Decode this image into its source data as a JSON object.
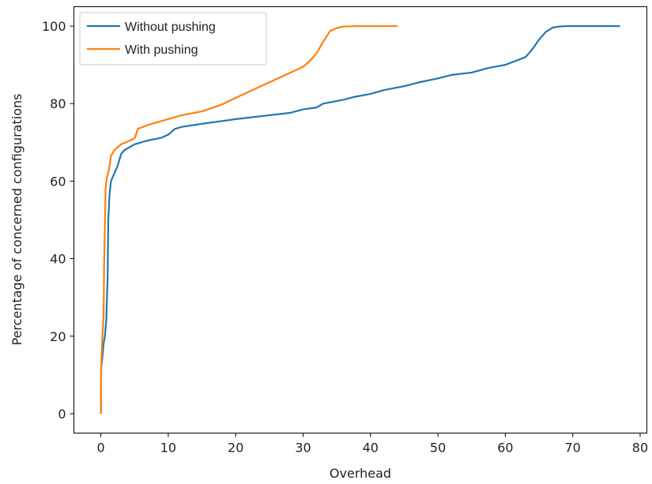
{
  "chart_data": {
    "type": "line",
    "title": "",
    "xlabel": "Overhead",
    "ylabel": "Percentage of concerned configurations",
    "xlim": [
      -4,
      81
    ],
    "ylim": [
      -5,
      105
    ],
    "xticks": [
      0,
      10,
      20,
      30,
      40,
      50,
      60,
      70,
      80
    ],
    "yticks": [
      0,
      20,
      40,
      60,
      80,
      100
    ],
    "grid": false,
    "legend_position": "top-left",
    "series": [
      {
        "name": "Without pushing",
        "color": "#1f77b4",
        "x": [
          0,
          0.05,
          0.2,
          0.4,
          0.6,
          0.8,
          1.0,
          1.1,
          1.3,
          1.5,
          2.0,
          2.5,
          3.0,
          3.5,
          5.0,
          7.0,
          9.0,
          10.0,
          11.0,
          12.0,
          15.0,
          18.0,
          20.0,
          25.0,
          28.0,
          30.0,
          32.0,
          33.0,
          36.0,
          37.5,
          40.0,
          42.0,
          45.0,
          47.5,
          50.0,
          52.0,
          55.0,
          57.5,
          60.0,
          63.0,
          64.0,
          65.0,
          66.0,
          67.0,
          68.0,
          69.0,
          70.0,
          74.0,
          77.0
        ],
        "y": [
          0,
          12,
          14,
          18,
          20,
          24,
          35,
          50,
          57,
          60,
          62,
          64,
          67,
          68,
          69.5,
          70.5,
          71.2,
          72.0,
          73.5,
          74.0,
          74.8,
          75.5,
          76.0,
          77.0,
          77.6,
          78.5,
          79.0,
          80.0,
          81.0,
          81.7,
          82.5,
          83.5,
          84.5,
          85.6,
          86.5,
          87.4,
          88.0,
          89.2,
          90.0,
          92.0,
          94.0,
          96.5,
          98.5,
          99.6,
          99.9,
          100,
          100,
          100,
          100
        ]
      },
      {
        "name": "With pushing",
        "color": "#ff7f0e",
        "x": [
          0,
          0.05,
          0.2,
          0.4,
          0.5,
          0.7,
          0.9,
          1.2,
          1.5,
          2.0,
          3.0,
          5.0,
          5.5,
          7.0,
          10.0,
          12.0,
          15.0,
          18.0,
          20.0,
          22.5,
          25.0,
          27.5,
          30.0,
          31.0,
          32.0,
          33.0,
          34.0,
          35.0,
          36.0,
          38.0,
          40.0,
          43.0,
          44.0
        ],
        "y": [
          0,
          12,
          19,
          25,
          40,
          58,
          61,
          63,
          66.5,
          68,
          69.5,
          71,
          73.5,
          74.5,
          76,
          77,
          78,
          79.8,
          81.5,
          83.5,
          85.5,
          87.5,
          89.5,
          91,
          93,
          96,
          98.7,
          99.5,
          99.9,
          100,
          100,
          100,
          100
        ]
      }
    ]
  }
}
